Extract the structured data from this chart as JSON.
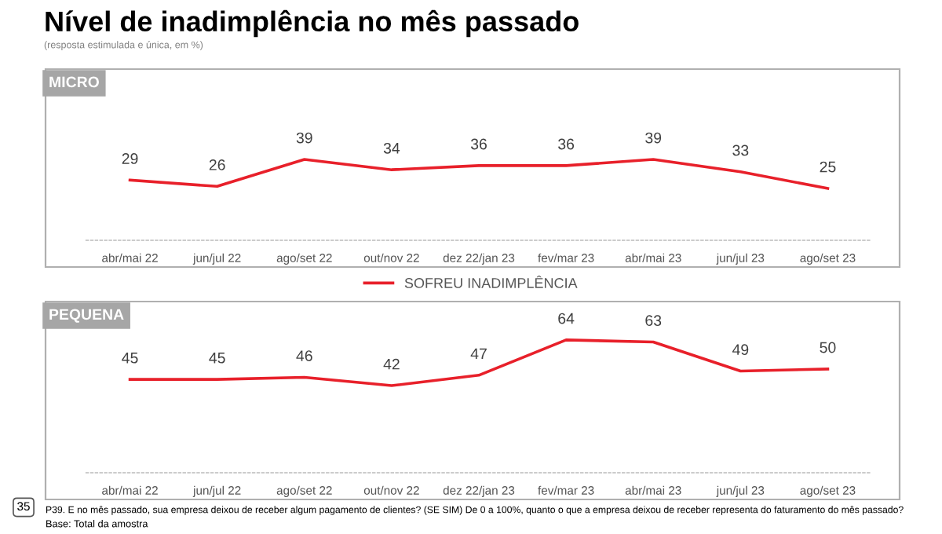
{
  "chart_data": [
    {
      "type": "line",
      "title": "MICRO",
      "annotations": [
        "Nível de inadimplência no mês passado",
        "(resposta estimulada e única, em %)"
      ],
      "categories": [
        "abr/mai 22",
        "jun/jul 22",
        "ago/set 22",
        "out/nov 22",
        "dez 22/jan 23",
        "fev/mar 23",
        "abr/mai 23",
        "jun/jul 23",
        "ago/set 23"
      ],
      "series": [
        {
          "name": "SOFREU INADIMPLÊNCIA",
          "color": "#e8202a",
          "values": [
            29,
            26,
            39,
            34,
            36,
            36,
            39,
            33,
            25
          ]
        }
      ],
      "tick_labels": "x",
      "data_labels": true,
      "grid": false,
      "legend": "bottom",
      "marker": "none",
      "line_style": "solid"
    },
    {
      "type": "line",
      "title": "PEQUENA",
      "annotations": [
        "P39. E no mês passado, sua empresa deixou de receber algum pagamento de clientes? (SE SIM) De 0 a 100%, quanto o que a empresa deixou de receber representa do faturamento do mês passado?",
        "Base: Total da amostra",
        "35"
      ],
      "categories": [
        "abr/mai 22",
        "jun/jul 22",
        "ago/set 22",
        "out/nov 22",
        "dez 22/jan 23",
        "fev/mar 23",
        "abr/mai 23",
        "jun/jul 23",
        "ago/set 23"
      ],
      "series": [
        {
          "color": "#e8202a",
          "values": [
            45,
            45,
            46,
            42,
            47,
            64,
            63,
            49,
            50
          ]
        }
      ],
      "tick_labels": "x",
      "data_labels": true,
      "grid": false,
      "marker": "none",
      "line_style": "solid"
    }
  ]
}
